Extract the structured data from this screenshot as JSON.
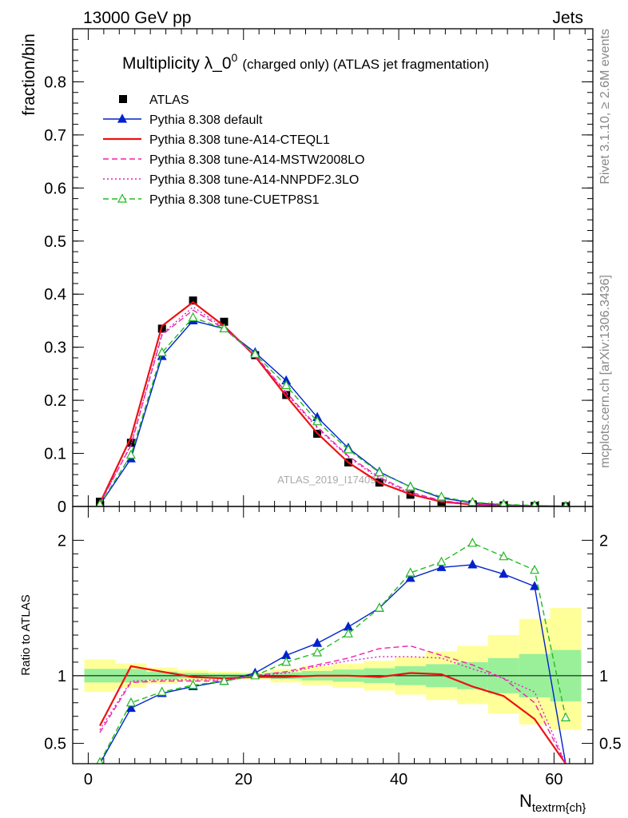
{
  "header": {
    "left": "13000 GeV pp",
    "right": "Jets"
  },
  "side": {
    "top": "Rivet 3.1.10, ≥ 2.6M events",
    "bottom": "mcplots.cern.ch [arXiv:1306.3436]"
  },
  "title": {
    "main": "Multiplicity λ_0",
    "sup": "0",
    "rest": "(charged only) (ATLAS jet fragmentation)"
  },
  "watermark": "ATLAS_2019_I1740909",
  "colors": {
    "atlas": "#000000",
    "default": "#0022cc",
    "cteql1": "#ee1111",
    "mstw": "#ee22aa",
    "nnpdf": "#dd22cc",
    "cuetp8s1": "#22bb22",
    "band_inner": "#99f099",
    "band_outer": "#ffff99"
  },
  "chart_data": [
    {
      "type": "line",
      "title": "Multiplicity λ_0^0 (charged only) (ATLAS jet fragmentation)",
      "ylabel": "fraction/bin",
      "xlim": [
        -2,
        65
      ],
      "ylim": [
        0,
        0.9
      ],
      "yticks": [
        0,
        0.1,
        0.2,
        0.3,
        0.4,
        0.5,
        0.6,
        0.7,
        0.8
      ],
      "ytick_labels": [
        "0",
        "0.1",
        "0.2",
        "0.3",
        "0.4",
        "0.5",
        "0.6",
        "0.7",
        "0.8"
      ],
      "x": [
        1.5,
        5.5,
        9.5,
        13.5,
        17.5,
        21.5,
        25.5,
        29.5,
        33.5,
        37.5,
        41.5,
        45.5,
        49.5,
        53.5,
        57.5,
        61.5
      ],
      "series": [
        {
          "name": "ATLAS",
          "key": "atlas",
          "style": "square",
          "values": [
            0.009,
            0.12,
            0.335,
            0.388,
            0.348,
            0.285,
            0.21,
            0.137,
            0.083,
            0.045,
            0.022,
            0.009,
            0.004,
            0.002,
            0.001,
            0.0004
          ]
        },
        {
          "name": "Pythia 8.308 default",
          "key": "default",
          "style": "solid-triangle",
          "values": [
            0.003,
            0.09,
            0.283,
            0.35,
            0.335,
            0.29,
            0.237,
            0.168,
            0.11,
            0.065,
            0.037,
            0.016,
            0.007,
            0.003,
            0.001,
            0.0001
          ]
        },
        {
          "name": "Pythia 8.308 tune-A14-CTEQL1",
          "key": "cteql1",
          "style": "solid",
          "values": [
            0.006,
            0.13,
            0.34,
            0.385,
            0.34,
            0.283,
            0.208,
            0.138,
            0.083,
            0.045,
            0.023,
            0.009,
            0.0035,
            0.0015,
            0.0007,
            0.0
          ]
        },
        {
          "name": "Pythia 8.308 tune-A14-MSTW2008LO",
          "key": "mstw",
          "style": "dashed",
          "values": [
            0.0055,
            0.115,
            0.323,
            0.37,
            0.335,
            0.285,
            0.215,
            0.15,
            0.095,
            0.055,
            0.027,
            0.011,
            0.0045,
            0.002,
            0.0008,
            0.0
          ]
        },
        {
          "name": "Pythia 8.308 tune-A14-NNPDF2.3LO",
          "key": "nnpdf",
          "style": "dotted",
          "values": [
            0.0057,
            0.116,
            0.325,
            0.376,
            0.337,
            0.285,
            0.213,
            0.148,
            0.093,
            0.052,
            0.025,
            0.01,
            0.004,
            0.0018,
            0.0007,
            0.0
          ]
        },
        {
          "name": "Pythia 8.308 tune-CUETP8S1",
          "key": "cuetp8s1",
          "style": "dashed-open-triangle",
          "values": [
            0.0035,
            0.097,
            0.29,
            0.356,
            0.335,
            0.287,
            0.228,
            0.16,
            0.107,
            0.064,
            0.037,
            0.018,
            0.008,
            0.004,
            0.002,
            0.0003
          ]
        }
      ]
    },
    {
      "type": "line",
      "ylabel": "Ratio to ATLAS",
      "xlabel": "N",
      "xlabel_sub": "textrm{ch}",
      "xlim": [
        -2,
        65
      ],
      "ylim": [
        0.35,
        2.25
      ],
      "yticks": [
        0.5,
        1,
        2
      ],
      "ytick_labels": [
        "0.5",
        "1",
        "2"
      ],
      "xticks": [
        0,
        20,
        40,
        60
      ],
      "xtick_labels": [
        "0",
        "20",
        "40",
        "60"
      ],
      "x": [
        1.5,
        5.5,
        9.5,
        13.5,
        17.5,
        21.5,
        25.5,
        29.5,
        33.5,
        37.5,
        41.5,
        45.5,
        49.5,
        53.5,
        57.5,
        61.5
      ],
      "band_inner": {
        "lo": [
          0.95,
          0.95,
          0.97,
          0.98,
          0.985,
          0.985,
          0.975,
          0.965,
          0.955,
          0.945,
          0.93,
          0.915,
          0.9,
          0.87,
          0.84,
          0.81
        ],
        "hi": [
          1.05,
          1.05,
          1.03,
          1.02,
          1.015,
          1.015,
          1.025,
          1.035,
          1.045,
          1.055,
          1.07,
          1.085,
          1.1,
          1.13,
          1.16,
          1.19
        ]
      },
      "band_outer": {
        "lo": [
          0.88,
          0.91,
          0.94,
          0.96,
          0.97,
          0.975,
          0.95,
          0.93,
          0.91,
          0.89,
          0.86,
          0.82,
          0.79,
          0.72,
          0.64,
          0.6
        ],
        "hi": [
          1.12,
          1.09,
          1.06,
          1.04,
          1.03,
          1.025,
          1.05,
          1.07,
          1.09,
          1.11,
          1.14,
          1.18,
          1.22,
          1.3,
          1.42,
          1.5
        ]
      },
      "series": [
        {
          "name": "Pythia 8.308 default",
          "key": "default",
          "style": "solid-triangle",
          "values": [
            0.3,
            0.76,
            0.87,
            0.92,
            0.96,
            1.02,
            1.15,
            1.24,
            1.36,
            1.5,
            1.72,
            1.8,
            1.82,
            1.75,
            1.66,
            0.32
          ]
        },
        {
          "name": "Pythia 8.308 tune-A14-CTEQL1",
          "key": "cteql1",
          "style": "solid",
          "values": [
            0.63,
            1.07,
            1.03,
            0.99,
            0.98,
            0.99,
            0.99,
            1.0,
            1.0,
            0.99,
            1.02,
            1.01,
            0.92,
            0.85,
            0.68,
            0.0
          ]
        },
        {
          "name": "Pythia 8.308 tune-A14-MSTW2008LO",
          "key": "mstw",
          "style": "dashed",
          "values": [
            0.58,
            0.95,
            0.96,
            0.96,
            0.96,
            1.0,
            1.03,
            1.08,
            1.13,
            1.2,
            1.22,
            1.15,
            1.08,
            0.98,
            0.8,
            0.0
          ]
        },
        {
          "name": "Pythia 8.308 tune-A14-NNPDF2.3LO",
          "key": "nnpdf",
          "style": "dotted",
          "values": [
            0.6,
            0.96,
            0.97,
            0.97,
            0.97,
            1.0,
            1.02,
            1.07,
            1.11,
            1.14,
            1.14,
            1.13,
            1.05,
            0.98,
            0.88,
            0.0
          ]
        },
        {
          "name": "Pythia 8.308 tune-CUETP8S1",
          "key": "cuetp8s1",
          "style": "dashed-open-triangle",
          "values": [
            0.36,
            0.8,
            0.88,
            0.93,
            0.96,
            1.0,
            1.1,
            1.17,
            1.31,
            1.5,
            1.76,
            1.84,
            1.98,
            1.88,
            1.78,
            0.69
          ]
        }
      ]
    }
  ]
}
